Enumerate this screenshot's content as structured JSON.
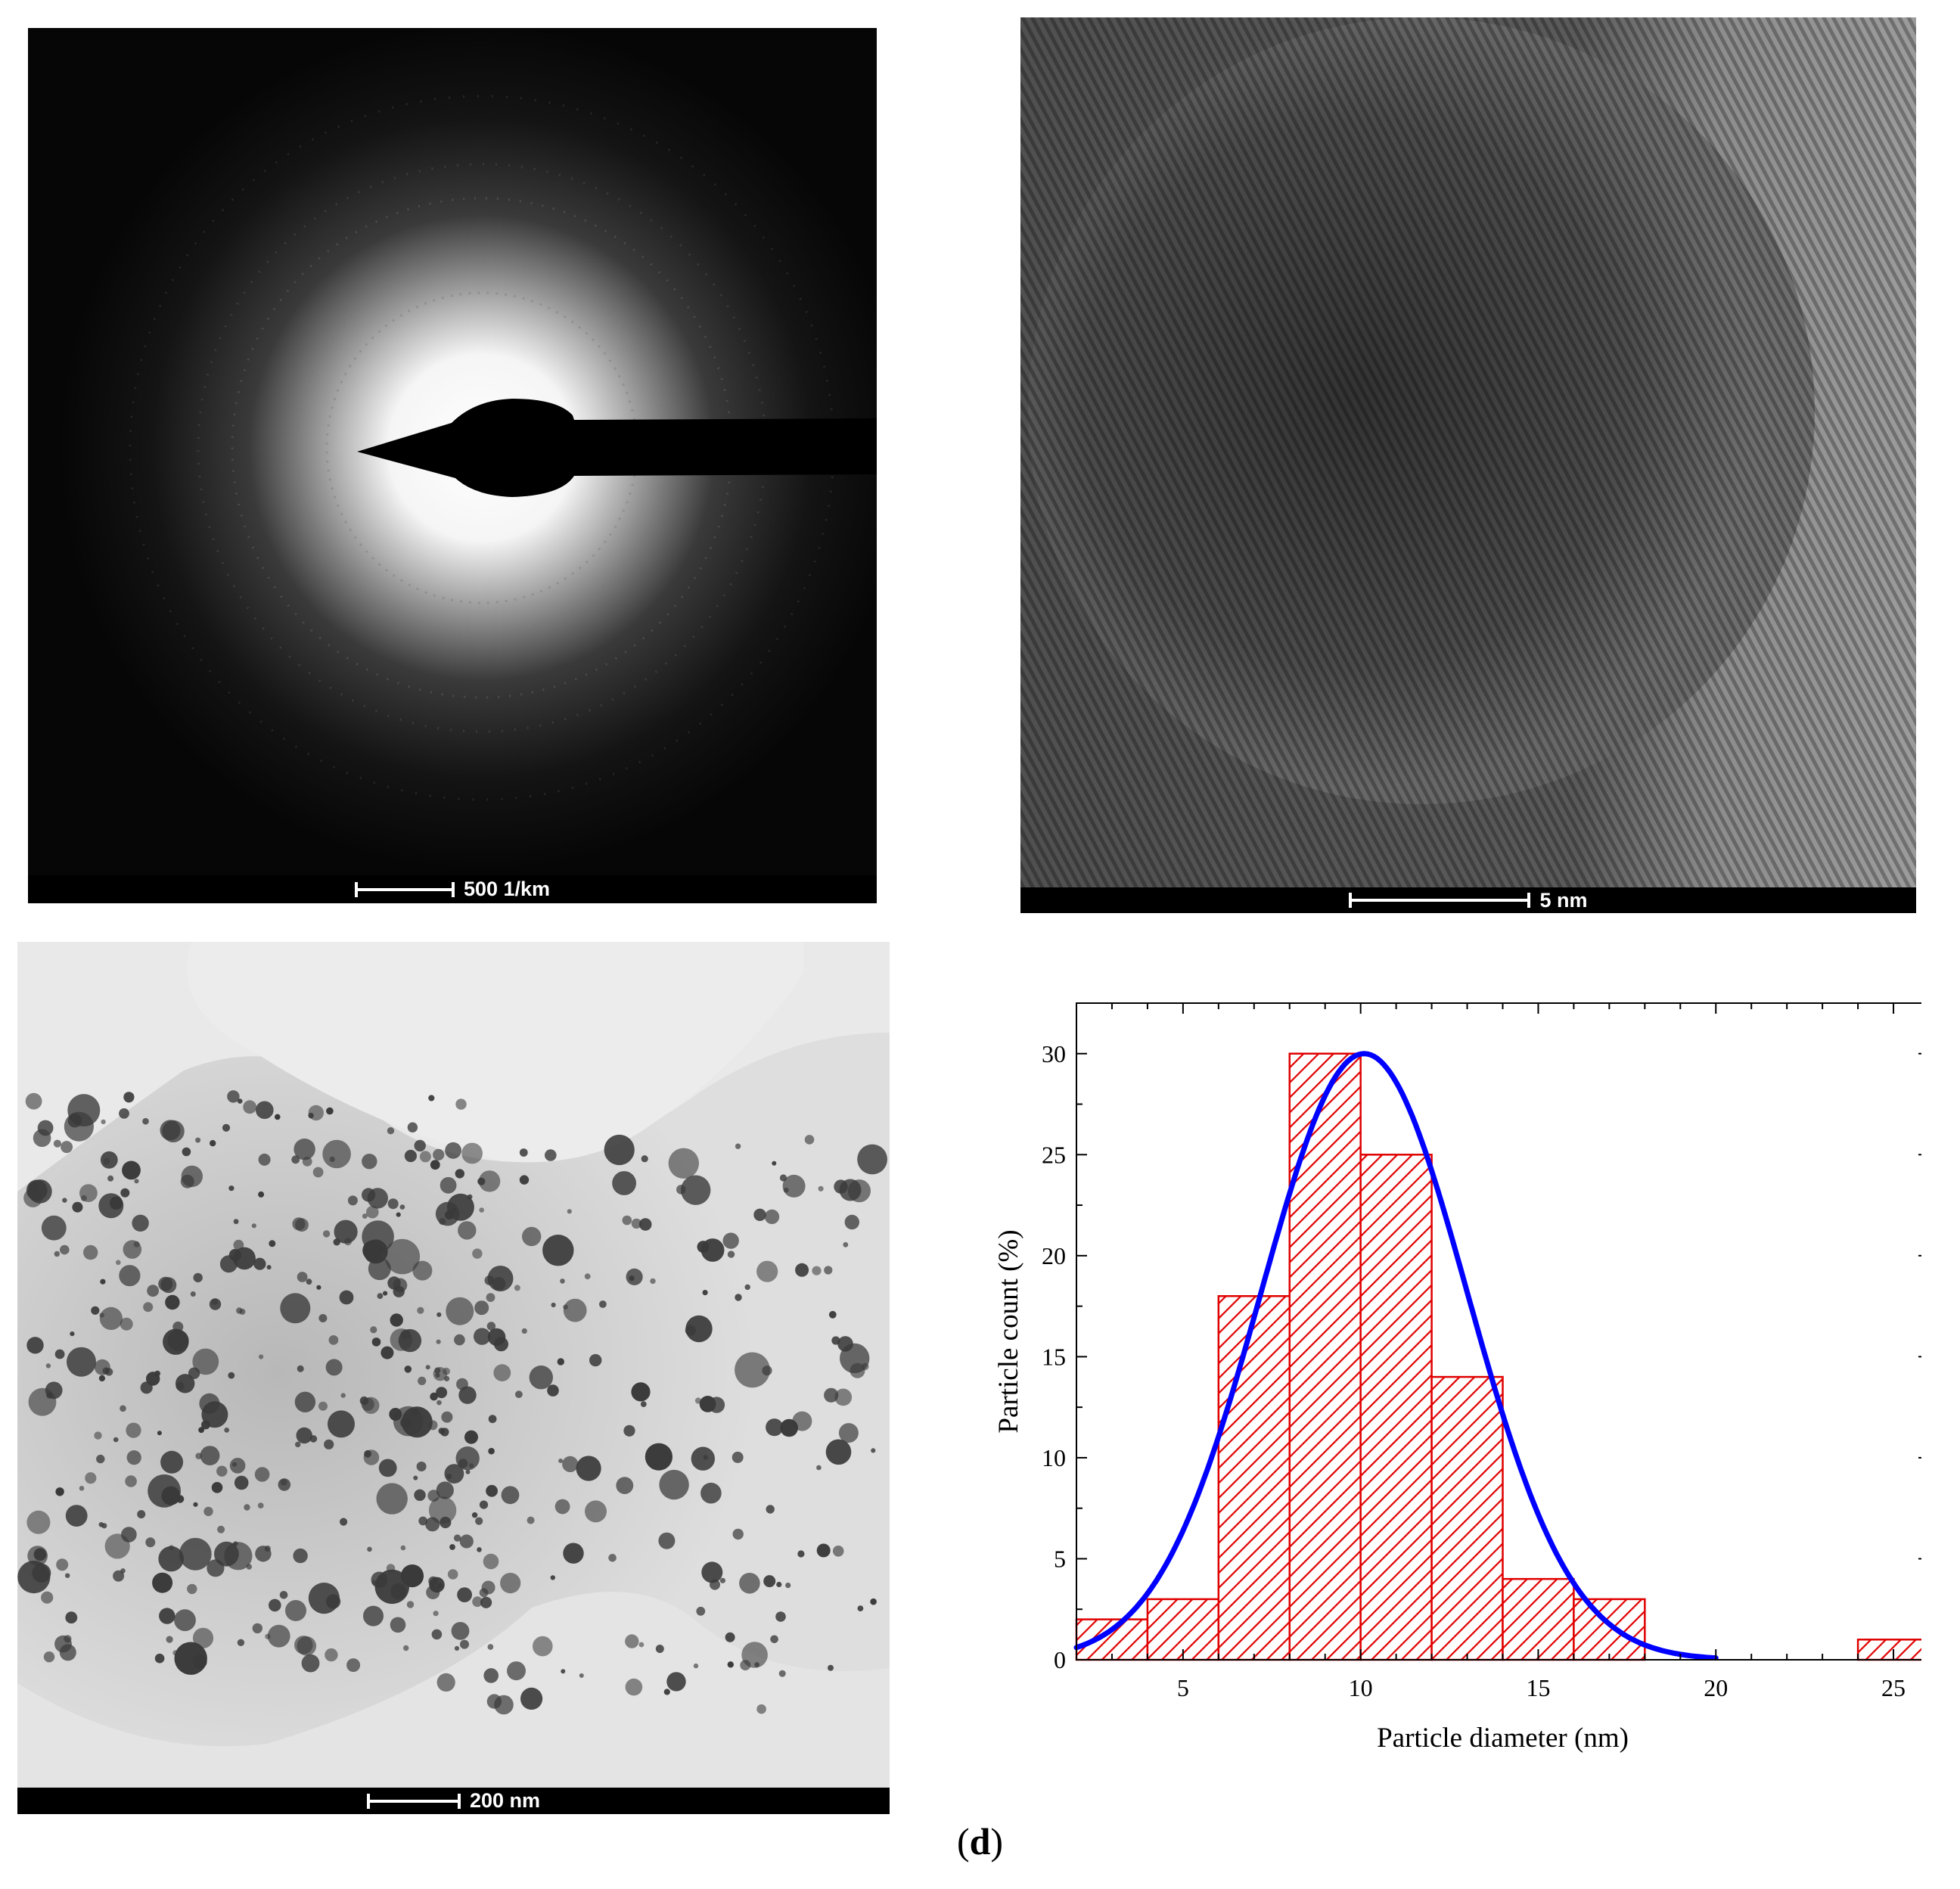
{
  "panels": {
    "diffraction": {
      "scale_label": "500 1/km"
    },
    "hrtem": {
      "scale_label": "5 nm"
    },
    "tem": {
      "scale_label": "200 nm"
    }
  },
  "caption": {
    "open": "(",
    "letter": "d",
    "close": ")"
  },
  "chart_data": {
    "type": "bar",
    "xlabel": "Particle diameter (nm)",
    "ylabel": "Particle count (%)",
    "xlim": [
      2,
      26
    ],
    "ylim": [
      0,
      32.5
    ],
    "xticks": [
      5,
      10,
      15,
      20,
      25
    ],
    "yticks": [
      0,
      5,
      10,
      15,
      20,
      25,
      30
    ],
    "bins": [
      {
        "from": 2,
        "to": 4,
        "value": 2
      },
      {
        "from": 4,
        "to": 6,
        "value": 3
      },
      {
        "from": 6,
        "to": 8,
        "value": 18
      },
      {
        "from": 8,
        "to": 10,
        "value": 30
      },
      {
        "from": 10,
        "to": 12,
        "value": 25
      },
      {
        "from": 12,
        "to": 14,
        "value": 14
      },
      {
        "from": 14,
        "to": 16,
        "value": 4
      },
      {
        "from": 16,
        "to": 18,
        "value": 3
      },
      {
        "from": 24,
        "to": 26,
        "value": 1
      }
    ],
    "fit": {
      "type": "gaussian",
      "center": 10.1,
      "amplitude": 30,
      "sigma": 2.9,
      "x_from": 2,
      "x_to": 20
    },
    "colors": {
      "bars": "#e00000",
      "fit": "#0000ff"
    },
    "grid": false,
    "legend": "none"
  }
}
